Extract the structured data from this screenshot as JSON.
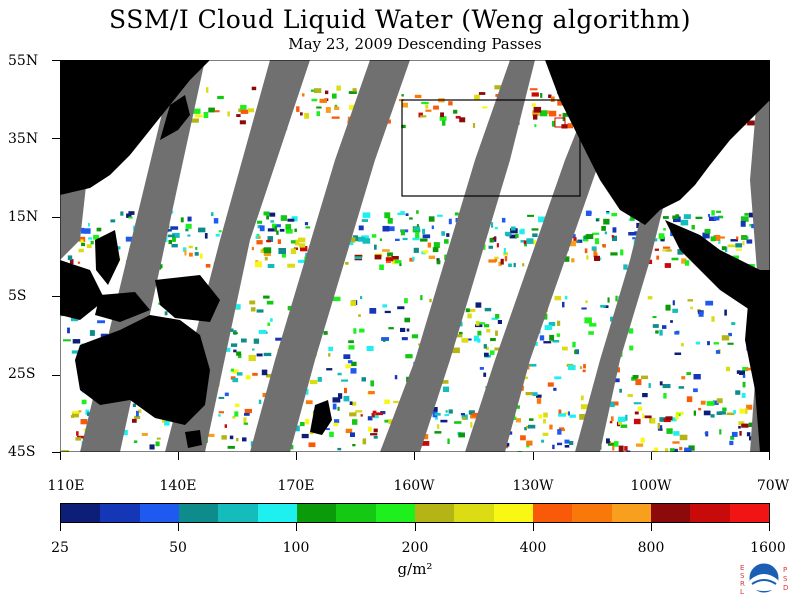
{
  "title": "SSM/I Cloud Liquid Water (Weng algorithm)",
  "subtitle": "May 23, 2009  Descending Passes",
  "lat_labels": [
    "55N",
    "35N",
    "15N",
    "5S",
    "25S",
    "45S"
  ],
  "lon_labels": [
    "110E",
    "140E",
    "170E",
    "160W",
    "130W",
    "100W",
    "70W"
  ],
  "colorbar": {
    "colors": [
      "#0c1e78",
      "#1636b8",
      "#1e5af0",
      "#0e8c8c",
      "#14bcbc",
      "#1ef0f0",
      "#0a9a0a",
      "#14c814",
      "#1ef01e",
      "#b4b414",
      "#dcdc14",
      "#f8f814",
      "#f85a0a",
      "#f8780a",
      "#f8a01e",
      "#8c0a0a",
      "#c80a0a",
      "#f01414"
    ],
    "labels": [
      "25",
      "50",
      "100",
      "200",
      "400",
      "800",
      "1600"
    ]
  },
  "units": "g/m²",
  "logo": {
    "left_text": "ESRL",
    "right_text": "PSD",
    "center_text": "NOAA"
  },
  "colors": {
    "land": "#000000",
    "no_data_swath": "#707070",
    "ocean_clear": "#ffffff"
  }
}
